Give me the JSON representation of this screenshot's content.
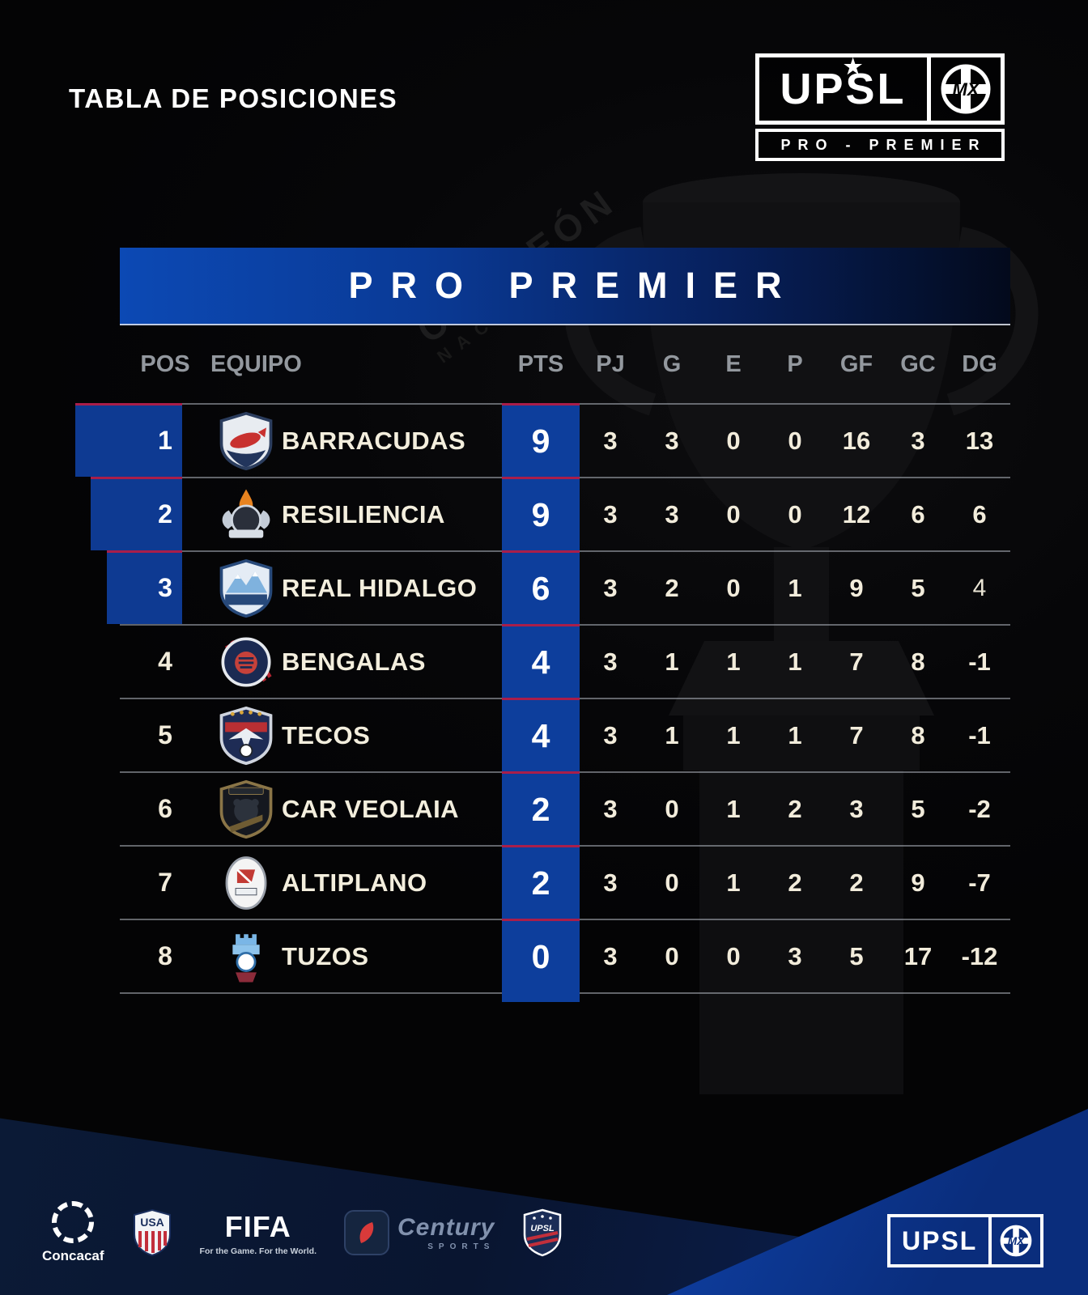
{
  "page": {
    "title": "TABLA DE POSICIONES"
  },
  "league_logo": {
    "word": "UPSL",
    "star": "★",
    "mx": "MX",
    "sub": "PRO - PREMIER"
  },
  "background": {
    "ribbon_line1": "CAMPEÓN",
    "ribbon_line2": "NACIONAL"
  },
  "chart_data": {
    "type": "table",
    "title": "PRO PREMIER",
    "columns": [
      "POS",
      "EQUIPO",
      "PTS",
      "PJ",
      "G",
      "E",
      "P",
      "GF",
      "GC",
      "DG"
    ],
    "rows": [
      {
        "pos": 1,
        "team": "BARRACUDAS",
        "pts": 9,
        "pj": 3,
        "g": 3,
        "e": 0,
        "p": 0,
        "gf": 16,
        "gc": 3,
        "dg": 13,
        "highlight": true,
        "badge": "fish-shield"
      },
      {
        "pos": 2,
        "team": "RESILIENCIA",
        "pts": 9,
        "pj": 3,
        "g": 3,
        "e": 0,
        "p": 0,
        "gf": 12,
        "gc": 6,
        "dg": 6,
        "highlight": true,
        "badge": "flame-wings"
      },
      {
        "pos": 3,
        "team": "REAL HIDALGO",
        "pts": 6,
        "pj": 3,
        "g": 2,
        "e": 0,
        "p": 1,
        "gf": 9,
        "gc": 5,
        "dg": 4,
        "highlight": true,
        "badge": "mountain-shield",
        "dg_light": true
      },
      {
        "pos": 4,
        "team": "BENGALAS",
        "pts": 4,
        "pj": 3,
        "g": 1,
        "e": 1,
        "p": 1,
        "gf": 7,
        "gc": 8,
        "dg": -1,
        "highlight": false,
        "badge": "tiger-circle"
      },
      {
        "pos": 5,
        "team": "TECOS",
        "pts": 4,
        "pj": 3,
        "g": 1,
        "e": 1,
        "p": 1,
        "gf": 7,
        "gc": 8,
        "dg": -1,
        "highlight": false,
        "badge": "eagle-shield"
      },
      {
        "pos": 6,
        "team": "CAR VEOLAIA",
        "pts": 2,
        "pj": 3,
        "g": 0,
        "e": 1,
        "p": 2,
        "gf": 3,
        "gc": 5,
        "dg": -2,
        "highlight": false,
        "badge": "bear-shield"
      },
      {
        "pos": 7,
        "team": "ALTIPLANO",
        "pts": 2,
        "pj": 3,
        "g": 0,
        "e": 1,
        "p": 2,
        "gf": 2,
        "gc": 9,
        "dg": -7,
        "highlight": false,
        "badge": "flag-oval"
      },
      {
        "pos": 8,
        "team": "TUZOS",
        "pts": 0,
        "pj": 3,
        "g": 0,
        "e": 0,
        "p": 3,
        "gf": 5,
        "gc": 17,
        "dg": -12,
        "highlight": false,
        "badge": "castle-crest"
      }
    ]
  },
  "footer": {
    "concacaf_label": "Concacaf",
    "usa_label": "USA",
    "fifa_label": "FIFA",
    "fifa_tagline": "For the Game. For the World.",
    "century_label": "Century",
    "century_sub": "SPORTS",
    "upsl_crest_label": "UPSL",
    "mx_logo": {
      "word": "UPSL",
      "mx": "MX"
    }
  },
  "colors": {
    "accent_blue": "#0d3e9c",
    "pos_blue": "#0e3a92",
    "header_blue": "#0c49b4",
    "divider_red": "#a91e4a",
    "row_line_gray": "#bec4ce",
    "text_cream": "#f2ecdb",
    "column_header_gray": "#93989e",
    "footer_blue": "#0f41a6"
  }
}
